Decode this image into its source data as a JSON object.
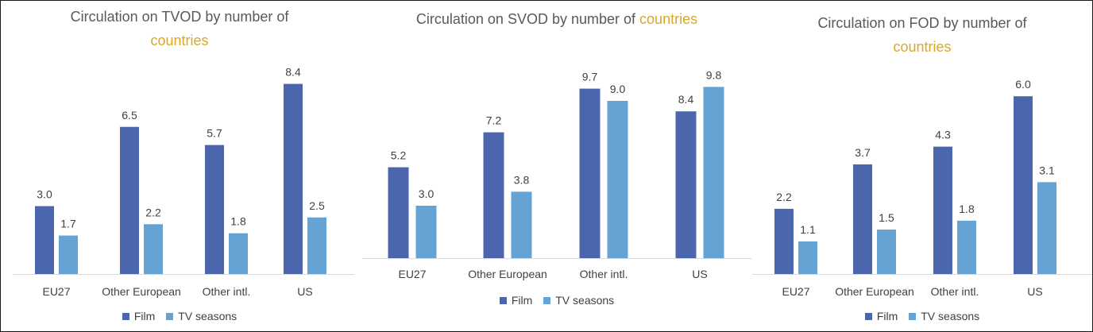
{
  "colors": {
    "film": "#4c66ae",
    "tv": "#66a3d5",
    "accent": "#d9a72a"
  },
  "chart_data": [
    {
      "type": "bar",
      "title_main": "Circulation on TVOD by number of",
      "title_accent": "countries",
      "categories": [
        "EU27",
        "Other European",
        "Other intl.",
        "US"
      ],
      "series": [
        {
          "name": "Film",
          "values": [
            3.0,
            6.5,
            5.7,
            8.4
          ],
          "labels": [
            "3.0",
            "6.5",
            "5.7",
            "8.4"
          ]
        },
        {
          "name": "TV seasons",
          "values": [
            1.7,
            2.2,
            1.8,
            2.5
          ],
          "labels": [
            "1.7",
            "2.2",
            "1.8",
            "2.5"
          ]
        }
      ],
      "ylim": [
        0,
        10
      ],
      "legend": "bottom"
    },
    {
      "type": "bar",
      "title_main": "Circulation on SVOD by number of",
      "title_accent": "countries",
      "categories": [
        "EU27",
        "Other European",
        "Other intl.",
        "US"
      ],
      "series": [
        {
          "name": "Film",
          "values": [
            5.2,
            7.2,
            9.7,
            8.4
          ],
          "labels": [
            "5.2",
            "7.2",
            "9.7",
            "8.4"
          ]
        },
        {
          "name": "TV seasons",
          "values": [
            3.0,
            3.8,
            9.0,
            9.8
          ],
          "labels": [
            "3.0",
            "3.8",
            "9.0",
            "9.8"
          ]
        }
      ],
      "ylim": [
        0,
        10
      ],
      "legend": "bottom"
    },
    {
      "type": "bar",
      "title_main": "Circulation on FOD by number of",
      "title_accent": "countries",
      "categories": [
        "EU27",
        "Other European",
        "Other intl.",
        "US"
      ],
      "series": [
        {
          "name": "Film",
          "values": [
            2.2,
            3.7,
            4.3,
            6.0
          ],
          "labels": [
            "2.2",
            "3.7",
            "4.3",
            "6.0"
          ]
        },
        {
          "name": "TV seasons",
          "values": [
            1.1,
            1.5,
            1.8,
            3.1
          ],
          "labels": [
            "1.1",
            "1.5",
            "1.8",
            "3.1"
          ]
        }
      ],
      "ylim": [
        0,
        10
      ],
      "legend": "bottom"
    }
  ]
}
